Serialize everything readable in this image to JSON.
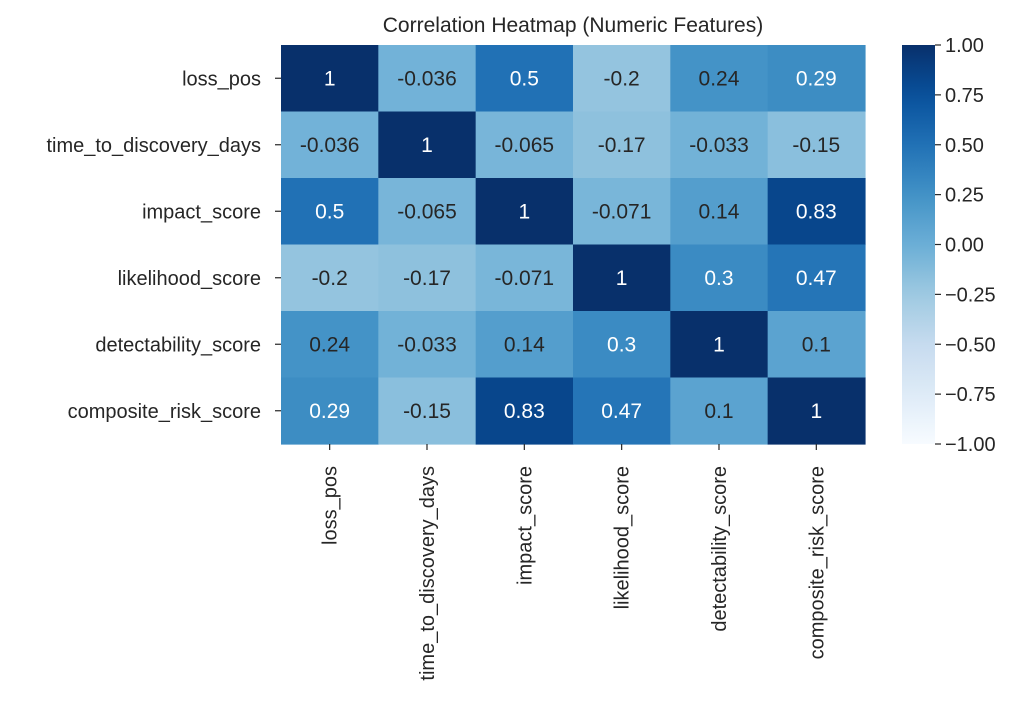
{
  "chart_data": {
    "type": "heatmap",
    "title": "Correlation Heatmap (Numeric Features)",
    "xlabel": "",
    "ylabel": "",
    "row_labels": [
      "loss_pos",
      "time_to_discovery_days",
      "impact_score",
      "likelihood_score",
      "detectability_score",
      "composite_risk_score"
    ],
    "col_labels": [
      "loss_pos",
      "time_to_discovery_days",
      "impact_score",
      "likelihood_score",
      "detectability_score",
      "composite_risk_score"
    ],
    "values": [
      [
        1,
        -0.036,
        0.5,
        -0.2,
        0.24,
        0.29
      ],
      [
        -0.036,
        1,
        -0.065,
        -0.17,
        -0.033,
        -0.15
      ],
      [
        0.5,
        -0.065,
        1,
        -0.071,
        0.14,
        0.83
      ],
      [
        -0.2,
        -0.17,
        -0.071,
        1,
        0.3,
        0.47
      ],
      [
        0.24,
        -0.033,
        0.14,
        0.3,
        1,
        0.1
      ],
      [
        0.29,
        -0.15,
        0.83,
        0.47,
        0.1,
        1
      ]
    ],
    "cell_labels": [
      [
        "1",
        "-0.036",
        "0.5",
        "-0.2",
        "0.24",
        "0.29"
      ],
      [
        "-0.036",
        "1",
        "-0.065",
        "-0.17",
        "-0.033",
        "-0.15"
      ],
      [
        "0.5",
        "-0.065",
        "1",
        "-0.071",
        "0.14",
        "0.83"
      ],
      [
        "-0.2",
        "-0.17",
        "-0.071",
        "1",
        "0.3",
        "0.47"
      ],
      [
        "0.24",
        "-0.033",
        "0.14",
        "0.3",
        "1",
        "0.1"
      ],
      [
        "0.29",
        "-0.15",
        "0.83",
        "0.47",
        "0.1",
        "1"
      ]
    ],
    "colorbar": {
      "vmin": -1.0,
      "vmax": 1.0,
      "ticks": [
        1.0,
        0.75,
        0.5,
        0.25,
        0.0,
        -0.25,
        -0.5,
        -0.75,
        -1.0
      ],
      "tick_labels": [
        "1.00",
        "0.75",
        "0.50",
        "0.25",
        "0.00",
        "−0.25",
        "−0.50",
        "−0.75",
        "−1.00"
      ],
      "colormap": "Blues"
    },
    "colors": {
      "low": "#f7fbff",
      "high": "#08306b",
      "text_dark": "#262626",
      "text_light": "#ffffff"
    }
  }
}
